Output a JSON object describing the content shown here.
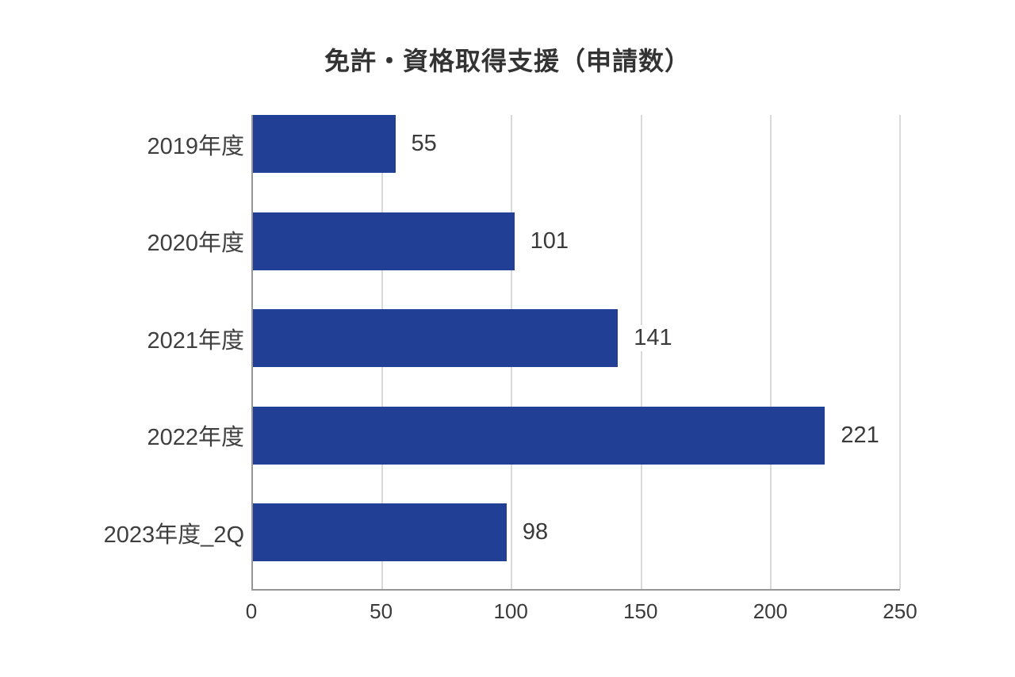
{
  "chart_data": {
    "type": "bar",
    "orientation": "horizontal",
    "title": "免許・資格取得支援（申請数）",
    "categories": [
      "2019年度",
      "2020年度",
      "2021年度",
      "2022年度",
      "2023年度_2Q"
    ],
    "values": [
      55,
      101,
      141,
      221,
      98
    ],
    "value_labels": [
      "55",
      "101",
      "141",
      "221",
      "98"
    ],
    "xlabel": "",
    "ylabel": "",
    "xlim": [
      0,
      250
    ],
    "x_ticks": [
      "0",
      "50",
      "100",
      "150",
      "200",
      "250"
    ],
    "x_tick_values": [
      0,
      50,
      100,
      150,
      200,
      250
    ],
    "grid": true,
    "legend": false,
    "bar_color": "#213f94",
    "gridline_color": "#d9d9d9",
    "axis_line_color": "#969696",
    "text_color": "#3a3a3a",
    "background_color": "#ffffff"
  }
}
